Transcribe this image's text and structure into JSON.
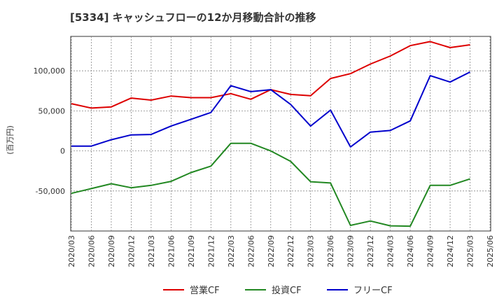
{
  "chart_data": {
    "type": "line",
    "title": "[5334]  キャッシュフローの12か月移動合計の推移",
    "ylabel": "(百万円)",
    "xlabel": "",
    "ylim": [
      -100000,
      143000
    ],
    "yticks": [
      -50000,
      0,
      50000,
      100000
    ],
    "ytick_labels": [
      "-50,000",
      "0",
      "50,000",
      "100,000"
    ],
    "x": [
      "2020/03",
      "2020/06",
      "2020/09",
      "2020/12",
      "2021/03",
      "2021/06",
      "2021/09",
      "2021/12",
      "2022/03",
      "2022/06",
      "2022/09",
      "2022/12",
      "2023/03",
      "2023/06",
      "2023/09",
      "2023/12",
      "2024/03",
      "2024/06",
      "2024/09",
      "2024/12",
      "2025/03",
      "2025/06"
    ],
    "grid": true,
    "legend_position": "bottom",
    "series": [
      {
        "name": "営業CF",
        "color": "#dd0000",
        "values": [
          59000,
          53500,
          55000,
          66000,
          63500,
          68500,
          66500,
          66500,
          71500,
          64500,
          76500,
          70500,
          69000,
          90500,
          96500,
          108500,
          118500,
          131500,
          136500,
          129000,
          132500,
          null
        ]
      },
      {
        "name": "投資CF",
        "color": "#228822",
        "values": [
          -53000,
          -47000,
          -41000,
          -46000,
          -43000,
          -38000,
          -27000,
          -19000,
          9500,
          9500,
          0,
          -13000,
          -38500,
          -40000,
          -93000,
          -87500,
          -93500,
          -94000,
          -43000,
          -43000,
          -35000,
          null
        ]
      },
      {
        "name": "フリーCF",
        "color": "#0000cc",
        "values": [
          6000,
          6000,
          14000,
          20000,
          20500,
          31000,
          39500,
          48000,
          81500,
          74000,
          76500,
          58000,
          31000,
          51000,
          5000,
          23500,
          25500,
          37500,
          94000,
          86000,
          98500,
          null
        ]
      }
    ]
  }
}
